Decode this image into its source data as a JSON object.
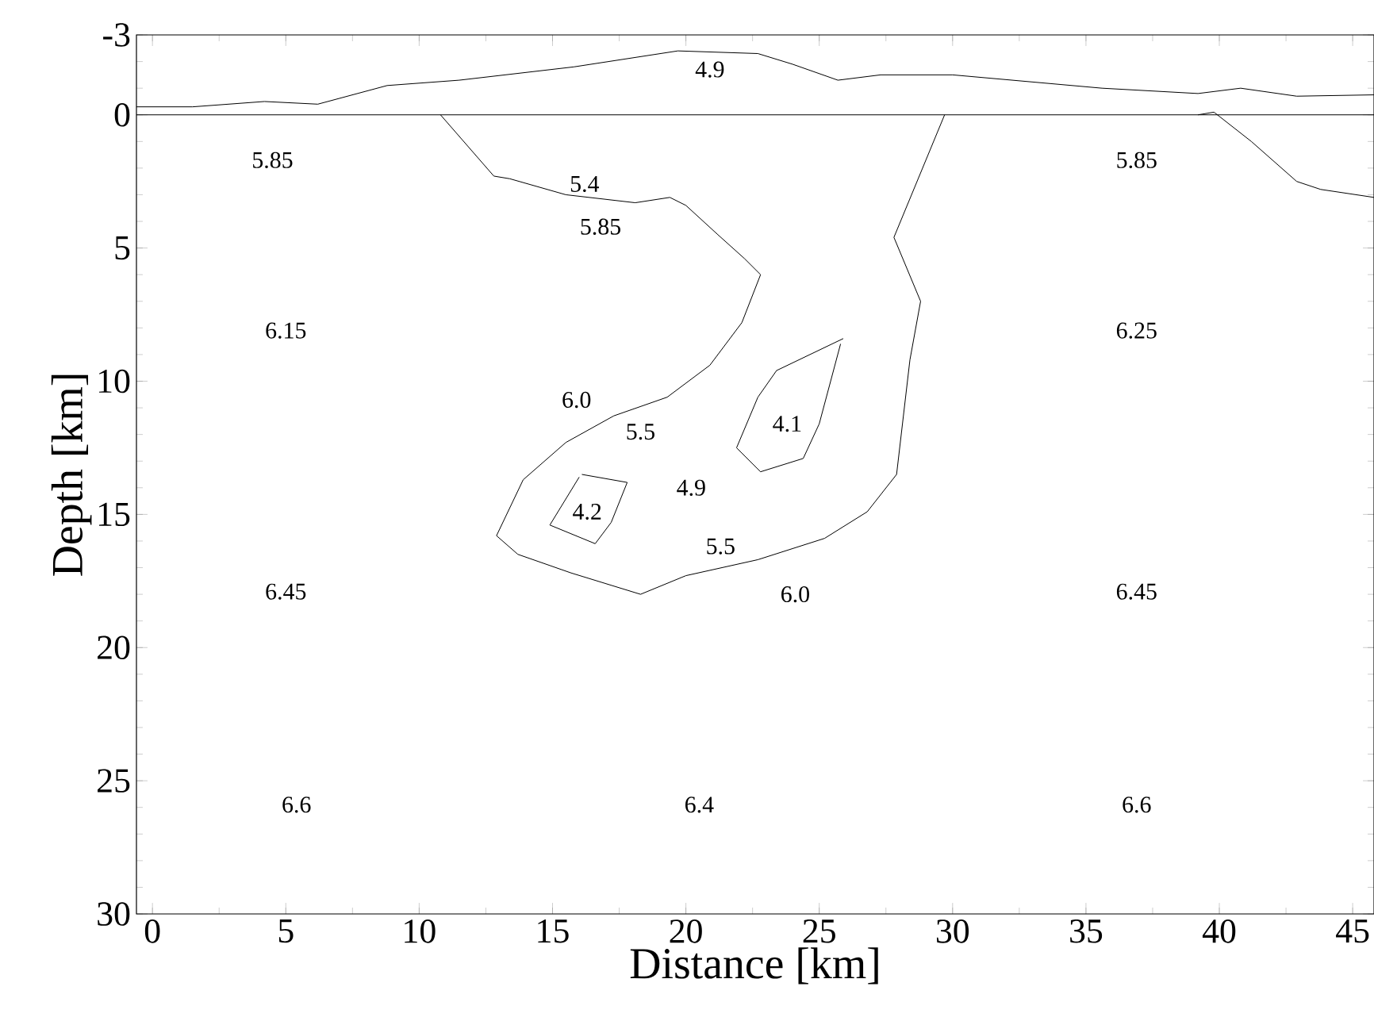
{
  "chart_data": {
    "type": "line",
    "xlabel": "Distance [km]",
    "ylabel": "Depth [km]",
    "xlim": [
      -0.6,
      45.8
    ],
    "ylim": [
      30,
      -3
    ],
    "xticks": [
      0,
      5,
      10,
      15,
      20,
      25,
      30,
      35,
      40,
      45
    ],
    "yticks": [
      -3,
      0,
      5,
      10,
      15,
      20,
      25,
      30
    ],
    "grid": false,
    "marker": "none",
    "line_style": "solid",
    "series": [
      {
        "color": "#000000",
        "x": [
          -0.6,
          1.5,
          4.2,
          6.2,
          8.8,
          11.5,
          15.8,
          19.7,
          22.7,
          24.0,
          25.7,
          27.3,
          30.0,
          35.6,
          39.2,
          40.8,
          42.9,
          45.8
        ],
        "values": [
          -0.3,
          -0.3,
          -0.5,
          -0.4,
          -1.1,
          -1.3,
          -1.8,
          -2.4,
          -2.3,
          -1.9,
          -1.3,
          -1.5,
          -1.5,
          -1.0,
          -0.8,
          -1.0,
          -0.7,
          -0.75
        ]
      },
      {
        "color": "#000000",
        "x": [
          -0.6,
          45.8
        ],
        "values": [
          0,
          0
        ]
      },
      {
        "color": "#000000",
        "x": [
          10.8,
          12.8,
          13.4,
          15.5,
          18.1,
          19.4,
          20.0,
          21.2,
          22.2,
          22.8,
          22.1,
          20.9,
          19.3,
          17.3,
          15.5,
          13.9,
          12.9,
          13.7,
          15.7,
          18.3,
          20.0,
          22.7,
          25.2,
          26.8,
          27.9,
          28.4,
          28.8,
          27.8,
          29.7
        ],
        "values": [
          0,
          2.3,
          2.4,
          3.0,
          3.3,
          3.1,
          3.4,
          4.5,
          5.4,
          6.0,
          7.8,
          9.4,
          10.6,
          11.3,
          12.3,
          13.7,
          15.8,
          16.5,
          17.2,
          18.0,
          17.3,
          16.7,
          15.9,
          14.9,
          13.5,
          9.2,
          7.0,
          4.6,
          0
        ]
      },
      {
        "color": "#000000",
        "x": [
          25.9,
          23.4,
          22.7,
          21.9,
          22.8,
          24.4,
          25.0,
          25.8
        ],
        "values": [
          8.4,
          9.6,
          10.6,
          12.5,
          13.4,
          12.9,
          11.6,
          8.6
        ]
      },
      {
        "color": "#000000",
        "x": [
          16.1,
          17.8,
          17.2,
          16.6,
          14.9,
          16.0
        ],
        "values": [
          13.5,
          13.8,
          15.3,
          16.1,
          15.4,
          13.6
        ]
      },
      {
        "color": "#000000",
        "x": [
          39.2,
          39.8,
          41.2,
          42.9,
          43.8,
          45.8
        ],
        "values": [
          0,
          -0.1,
          1.0,
          2.5,
          2.8,
          3.1
        ]
      }
    ],
    "annotations": [
      "4.9",
      "5.85",
      "5.4",
      "5.85",
      "5.85",
      "6.15",
      "6.25",
      "6.0",
      "5.5",
      "4.1",
      "4.9",
      "4.2",
      "5.5",
      "6.0",
      "6.45",
      "6.45",
      "6.6",
      "6.4",
      "6.6"
    ]
  }
}
